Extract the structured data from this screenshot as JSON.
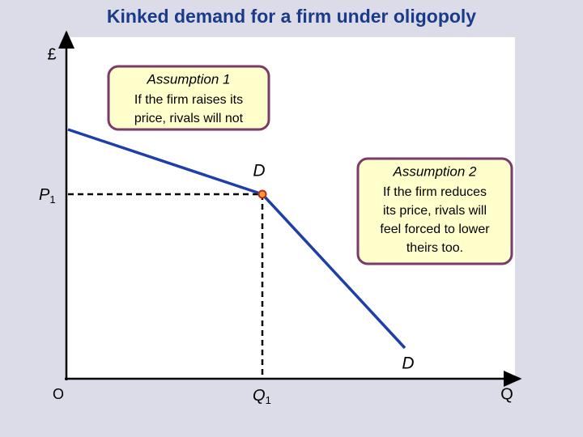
{
  "title": "Kinked demand for a firm under oligopoly",
  "axes": {
    "y_label": "£",
    "x_label": "Q",
    "origin": "O"
  },
  "markers": {
    "price": {
      "main": "P",
      "sub": "1"
    },
    "quantity": {
      "main": "Q",
      "sub": "1"
    }
  },
  "curve_labels": {
    "upper": "D",
    "lower": "D"
  },
  "callouts": [
    {
      "heading": "Assumption 1",
      "lines": [
        "If the firm raises its",
        "price, rivals will not"
      ]
    },
    {
      "heading": "Assumption 2",
      "lines": [
        "If the firm reduces",
        "its price, rivals will",
        "feel forced to lower",
        "theirs too."
      ]
    }
  ]
}
